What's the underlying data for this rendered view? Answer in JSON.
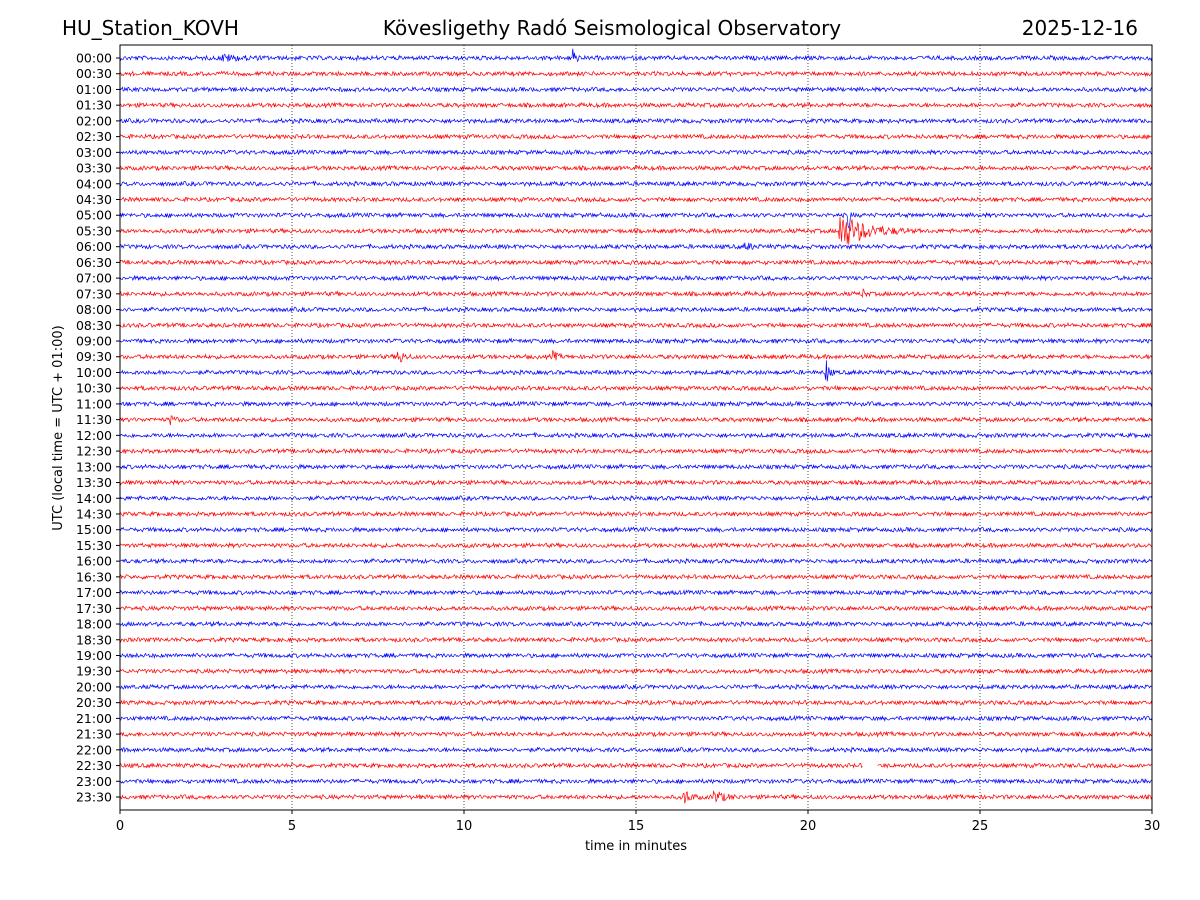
{
  "chart_data": {
    "type": "line",
    "title_left": "HU_Station_KOVH",
    "title": "Kövesligethy Radó Seismological Observatory",
    "title_right": "2025-12-16",
    "xlabel": "time in minutes",
    "ylabel": "UTC (local time = UTC + 01:00)",
    "xlim": [
      0,
      30
    ],
    "xticks": [
      "0",
      "5",
      "10",
      "15",
      "20",
      "25",
      "30"
    ],
    "grid": "vertical dotted at 5-minute intervals",
    "row_labels": [
      "00:00",
      "00:30",
      "01:00",
      "01:30",
      "02:00",
      "02:30",
      "03:00",
      "03:30",
      "04:00",
      "04:30",
      "05:00",
      "05:30",
      "06:00",
      "06:30",
      "07:00",
      "07:30",
      "08:00",
      "08:30",
      "09:00",
      "09:30",
      "10:00",
      "10:30",
      "11:00",
      "11:30",
      "12:00",
      "12:30",
      "13:00",
      "13:30",
      "14:00",
      "14:30",
      "15:00",
      "15:30",
      "16:00",
      "16:30",
      "17:00",
      "17:30",
      "18:00",
      "18:30",
      "19:00",
      "19:30",
      "20:00",
      "20:30",
      "21:00",
      "21:30",
      "22:00",
      "22:30",
      "23:00",
      "23:30"
    ],
    "colors": [
      "#0000ff",
      "#ff0000"
    ],
    "events": [
      {
        "row": "00:00",
        "minute": 13.2,
        "amplitude": 1.2,
        "duration": 0.15
      },
      {
        "row": "00:00",
        "minute": 3.0,
        "amplitude": 0.25,
        "duration": 1.5
      },
      {
        "row": "05:00",
        "minute": 21.2,
        "amplitude": 1.0,
        "duration": 0.1
      },
      {
        "row": "05:30",
        "minute": 20.95,
        "amplitude": 1.4,
        "duration": 2.0
      },
      {
        "row": "06:00",
        "minute": 18.2,
        "amplitude": 0.3,
        "duration": 0.5
      },
      {
        "row": "07:30",
        "minute": 21.6,
        "amplitude": 0.35,
        "duration": 0.2
      },
      {
        "row": "09:30",
        "minute": 8.1,
        "amplitude": 0.6,
        "duration": 0.4
      },
      {
        "row": "09:30",
        "minute": 12.6,
        "amplitude": 0.4,
        "duration": 0.3
      },
      {
        "row": "10:00",
        "minute": 20.55,
        "amplitude": 1.0,
        "duration": 0.2
      },
      {
        "row": "11:30",
        "minute": 1.5,
        "amplitude": 0.3,
        "duration": 0.3
      },
      {
        "row": "23:30",
        "minute": 16.4,
        "amplitude": 0.6,
        "duration": 0.5
      },
      {
        "row": "23:30",
        "minute": 17.3,
        "amplitude": 0.5,
        "duration": 0.7
      }
    ],
    "gaps": [
      {
        "row": "22:30",
        "from": 21.6,
        "to": 22.0
      }
    ]
  }
}
